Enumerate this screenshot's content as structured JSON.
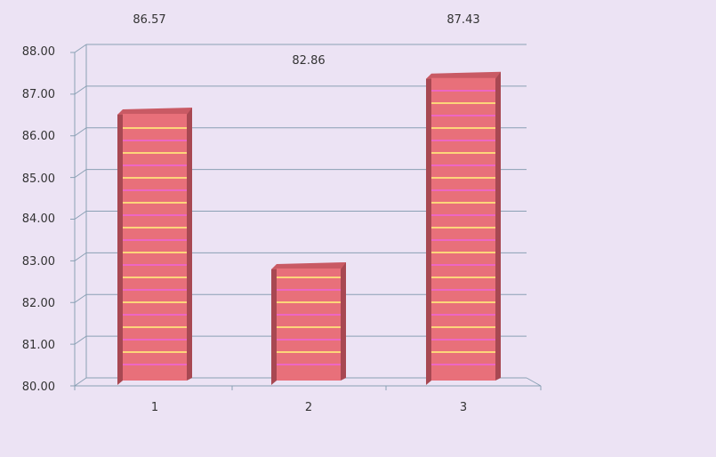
{
  "chart_data": {
    "type": "bar",
    "categories": [
      "1",
      "2",
      "3"
    ],
    "values": [
      86.57,
      82.86,
      87.43
    ],
    "data_labels": [
      "86.57",
      "82.86",
      "87.43"
    ],
    "y_ticks": [
      "80.00",
      "81.00",
      "82.00",
      "83.00",
      "84.00",
      "85.00",
      "86.00",
      "87.00",
      "88.00"
    ],
    "ylim": [
      80,
      88
    ],
    "grid": true,
    "legend": "none",
    "three_d": true,
    "colors": {
      "bar_front": "#e8707a",
      "bar_side": "#a84852",
      "bar_top": "#c95a64",
      "stripe_yellow": "#ffe07a",
      "stripe_pink": "#ee66cc",
      "gridline": "#8aa0b4",
      "background": "#ece3f4"
    }
  }
}
